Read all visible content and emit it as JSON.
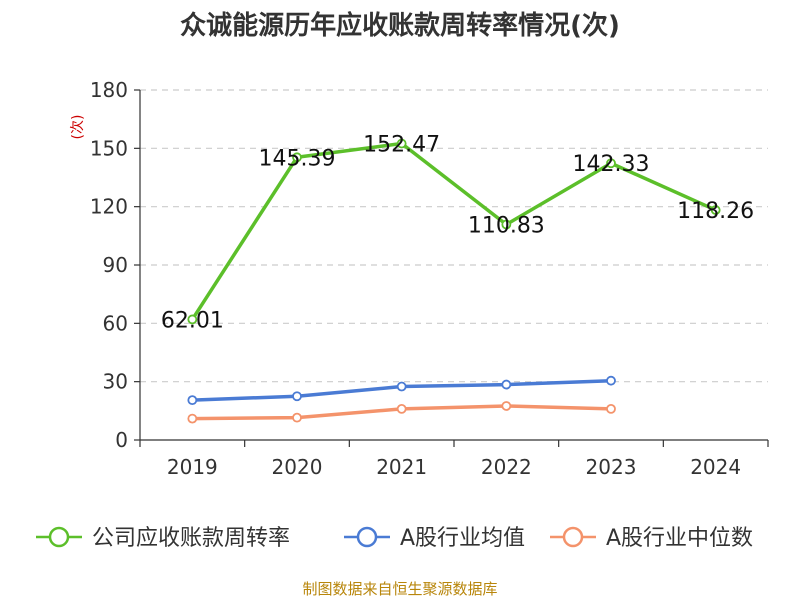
{
  "chart_data": {
    "type": "line",
    "title": "众诚能源历年应收账款周转率情况(次)",
    "ylabel": "(次)",
    "categories": [
      "2019",
      "2020",
      "2021",
      "2022",
      "2023",
      "2024"
    ],
    "ylim": [
      0,
      180
    ],
    "yticks": [
      0,
      30,
      60,
      90,
      120,
      150,
      180
    ],
    "grid": true,
    "legend_position": "bottom",
    "series": [
      {
        "name": "公司应收账款周转率",
        "color": "#5cbf2a",
        "values": [
          62.01,
          145.39,
          152.47,
          110.83,
          142.33,
          118.26
        ],
        "labels": [
          "62.01",
          "145.39",
          "152.47",
          "110.83",
          "142.33",
          "118.26"
        ]
      },
      {
        "name": "A股行业均值",
        "color": "#4a7bd4",
        "values": [
          20.5,
          22.5,
          27.5,
          28.5,
          30.5,
          null
        ]
      },
      {
        "name": "A股行业中位数",
        "color": "#f4936b",
        "values": [
          11.0,
          11.5,
          16.0,
          17.5,
          16.0,
          null
        ]
      }
    ]
  },
  "source": "制图数据来自恒生聚源数据库"
}
